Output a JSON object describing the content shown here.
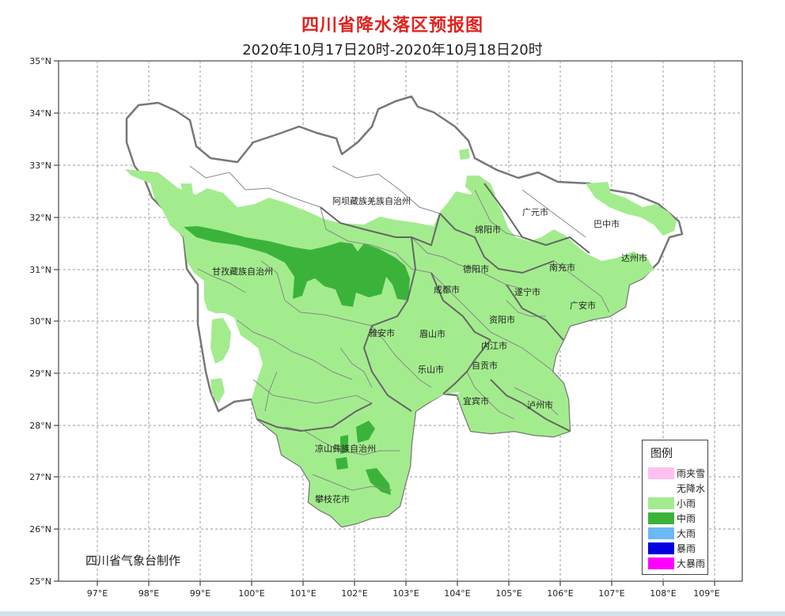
{
  "map": {
    "title": "四川省降水落区预报图",
    "subtitle": "2020年10月17日20时-2020年10月18日20时",
    "credit": "四川省气象台制作",
    "lat_labels": [
      "35°N",
      "34°N",
      "33°N",
      "32°N",
      "31°N",
      "30°N",
      "29°N",
      "28°N",
      "27°N",
      "26°N",
      "25°N"
    ],
    "lon_labels": [
      "97°E",
      "98°E",
      "99°E",
      "100°E",
      "101°E",
      "102°E",
      "103°E",
      "104°E",
      "105°E",
      "106°E",
      "107°E",
      "108°E",
      "109°E"
    ],
    "cities": [
      "阿坝藏族羌族自治州",
      "广元市",
      "巴中市",
      "绵阳市",
      "达州市",
      "甘孜藏族自治州",
      "德阳市",
      "南充市",
      "成都市",
      "遂宁市",
      "广安市",
      "资阳市",
      "雅安市",
      "眉山市",
      "内江市",
      "自贡市",
      "乐山市",
      "宜宾市",
      "泸州市",
      "凉山彝族自治州",
      "攀枝花市"
    ]
  },
  "legend": {
    "title": "图例",
    "items": [
      {
        "label": "雨夹雪",
        "color": "#ffc0f0"
      },
      {
        "label": "无降水",
        "color": "#ffffff"
      },
      {
        "label": "小雨",
        "color": "#a3ec8e"
      },
      {
        "label": "中雨",
        "color": "#3bb33b"
      },
      {
        "label": "大雨",
        "color": "#6cb8f4"
      },
      {
        "label": "暴雨",
        "color": "#0000e0"
      },
      {
        "label": "大暴雨",
        "color": "#ff00ff"
      }
    ]
  },
  "colors": {
    "light_rain": "#a3ec8e",
    "moderate_rain": "#3bb33b",
    "boundary": "#777777",
    "title_red": "#e0231e"
  }
}
